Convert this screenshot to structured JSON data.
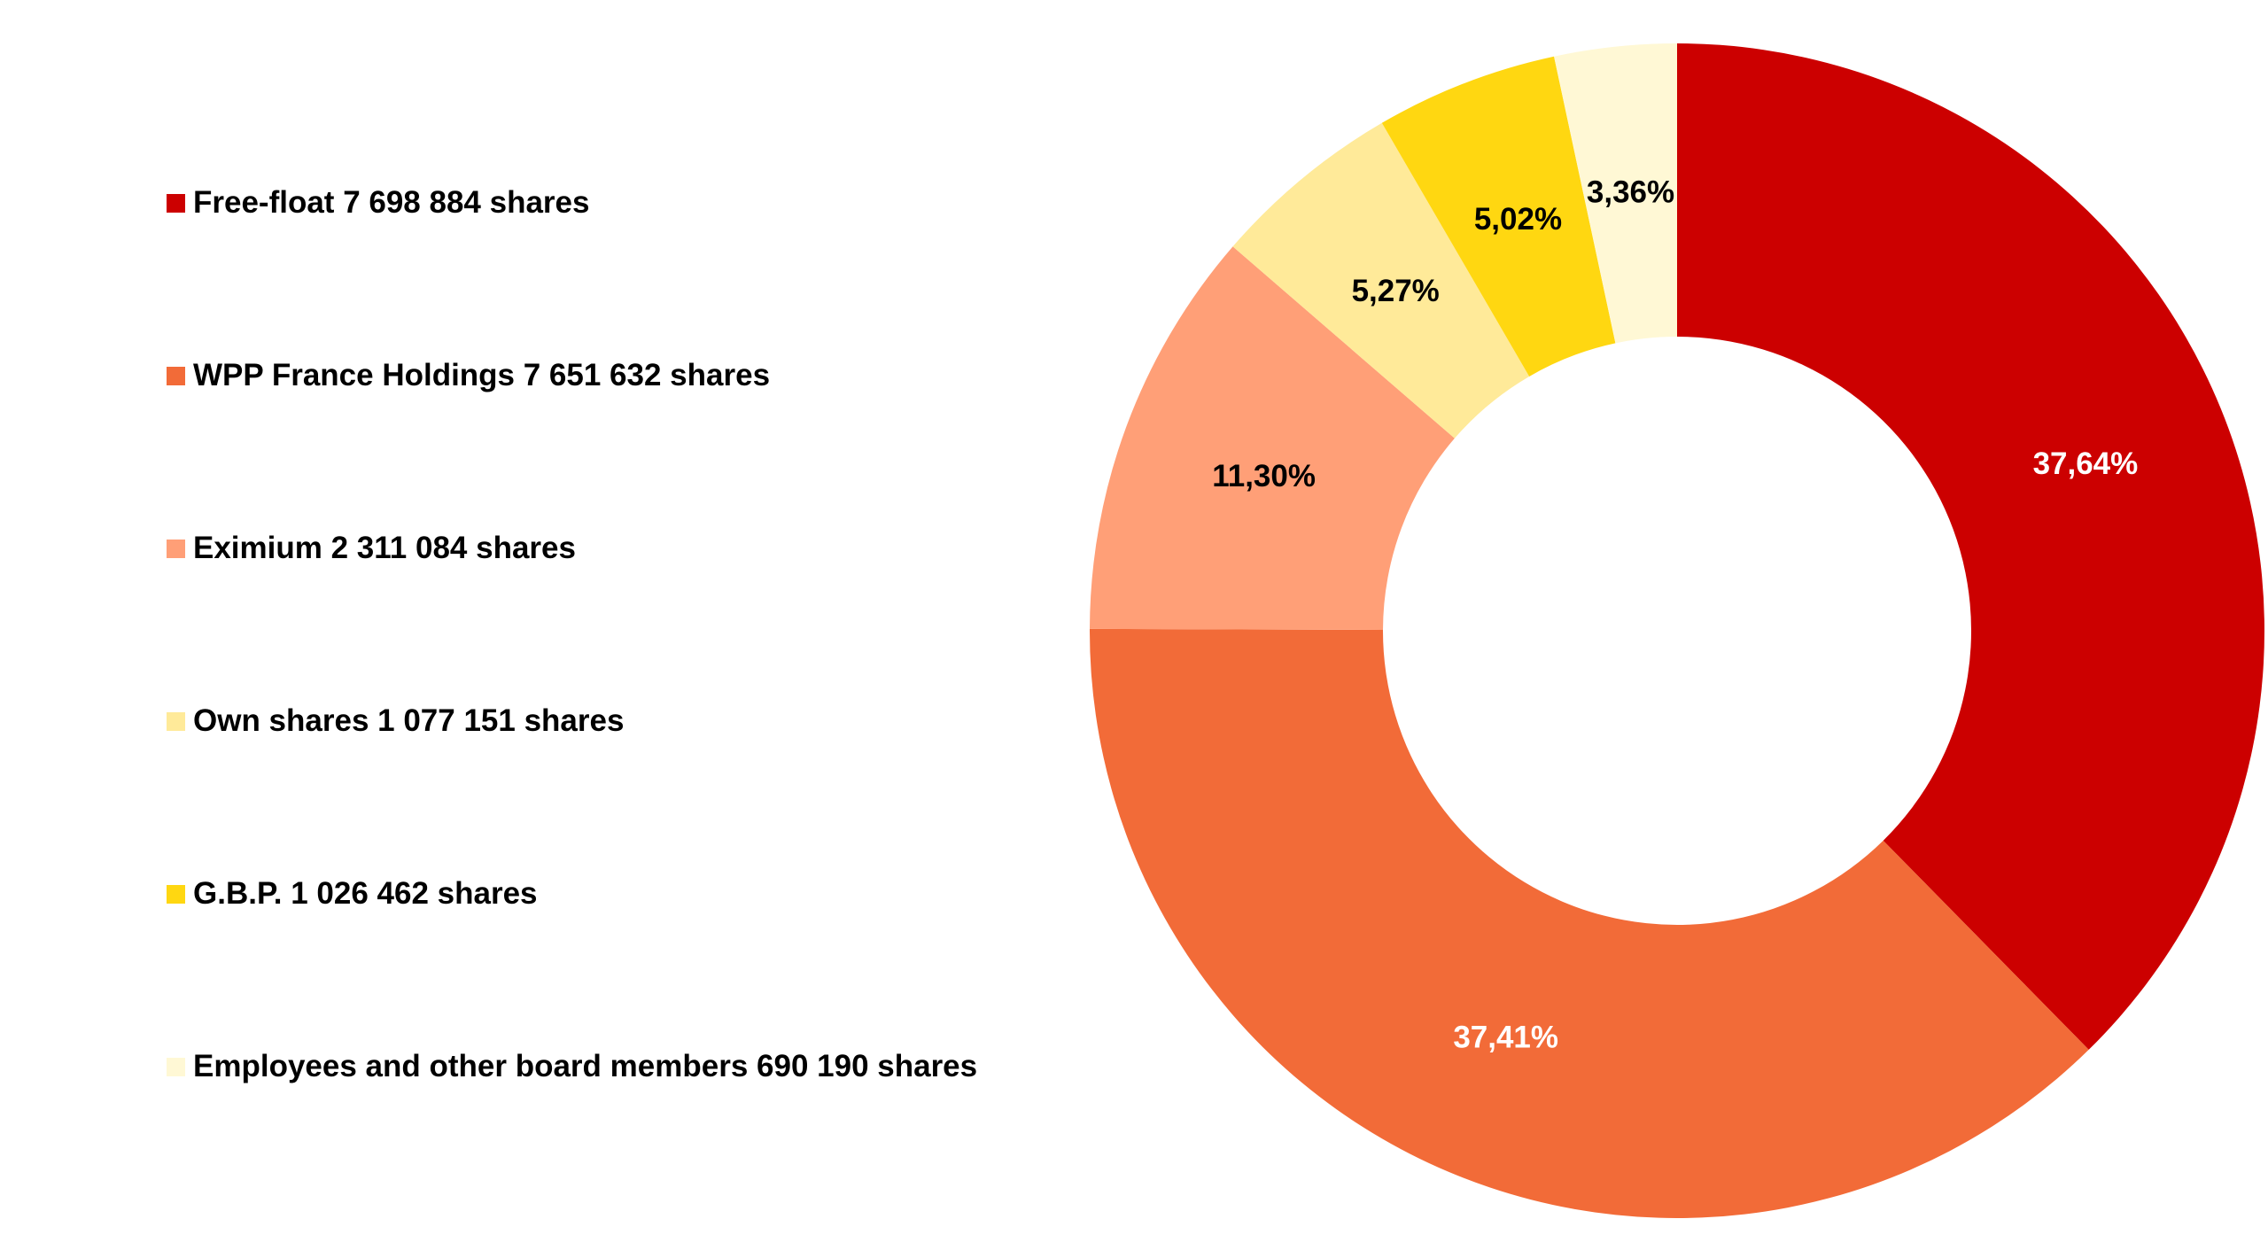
{
  "chart_data": {
    "type": "pie",
    "donut": true,
    "legend_position": "left",
    "slices": [
      {
        "legend": "Free-float 7 698 884 shares",
        "value": 37.64,
        "label": "37,64%",
        "color": "#CC0000",
        "label_color": "#FFFFFF"
      },
      {
        "legend": "WPP France Holdings 7 651 632 shares",
        "value": 37.41,
        "label": "37,41%",
        "color": "#F26B38",
        "label_color": "#FFFFFF"
      },
      {
        "legend": "Eximium 2 311 084 shares",
        "value": 11.3,
        "label": "11,30%",
        "color": "#FF9F77",
        "label_color": "#000000"
      },
      {
        "legend": "Own shares 1 077 151 shares",
        "value": 5.27,
        "label": "5,27%",
        "color": "#FFEA99",
        "label_color": "#000000"
      },
      {
        "legend": "G.B.P. 1 026 462 shares",
        "value": 5.02,
        "label": "5,02%",
        "color": "#FFD711",
        "label_color": "#000000"
      },
      {
        "legend": "Employees and other board members 690 190 shares",
        "value": 3.36,
        "label": "3,36%",
        "color": "#FFF8D5",
        "label_color": "#000000"
      }
    ]
  }
}
